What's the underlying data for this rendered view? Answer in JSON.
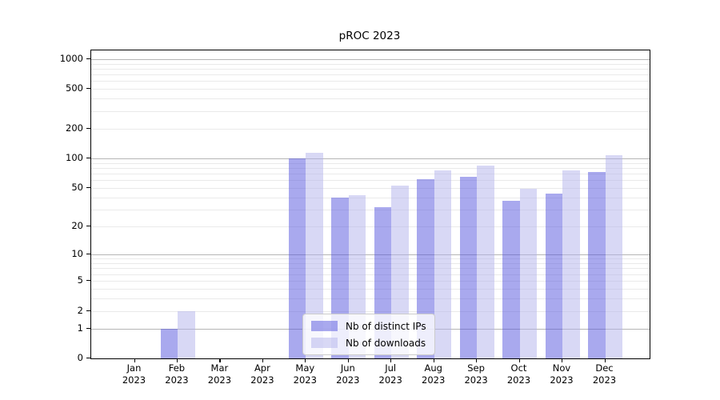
{
  "chart_data": {
    "type": "bar",
    "title": "pROC 2023",
    "categories": [
      "Jan",
      "Feb",
      "Mar",
      "Apr",
      "May",
      "Jun",
      "Jul",
      "Aug",
      "Sep",
      "Oct",
      "Nov",
      "Dec"
    ],
    "category_year": "2023",
    "series": [
      {
        "name": "Nb of distinct IPs",
        "color": "#5353DD80",
        "values": [
          0,
          1,
          0,
          0,
          100,
          40,
          32,
          62,
          65,
          37,
          44,
          73
        ]
      },
      {
        "name": "Nb of downloads",
        "color": "#B1B1EB80",
        "values": [
          0,
          2,
          0,
          0,
          113,
          42,
          53,
          75,
          84,
          49,
          75,
          107
        ]
      }
    ],
    "yscale": "log1p",
    "yticks": [
      0,
      1,
      2,
      5,
      10,
      20,
      50,
      100,
      200,
      500,
      1000
    ],
    "ylim": [
      0,
      1220
    ],
    "grid": "horizontal",
    "legend_position": "lower-center",
    "colors": {
      "bar_dark_composite": "#a9a9ee",
      "bar_light_composite": "#d8d8f5",
      "grid_minor": "#eaeaea",
      "grid_major": "#b5b5b5",
      "axis": "#000000",
      "legend_border": "#cccccc"
    }
  }
}
